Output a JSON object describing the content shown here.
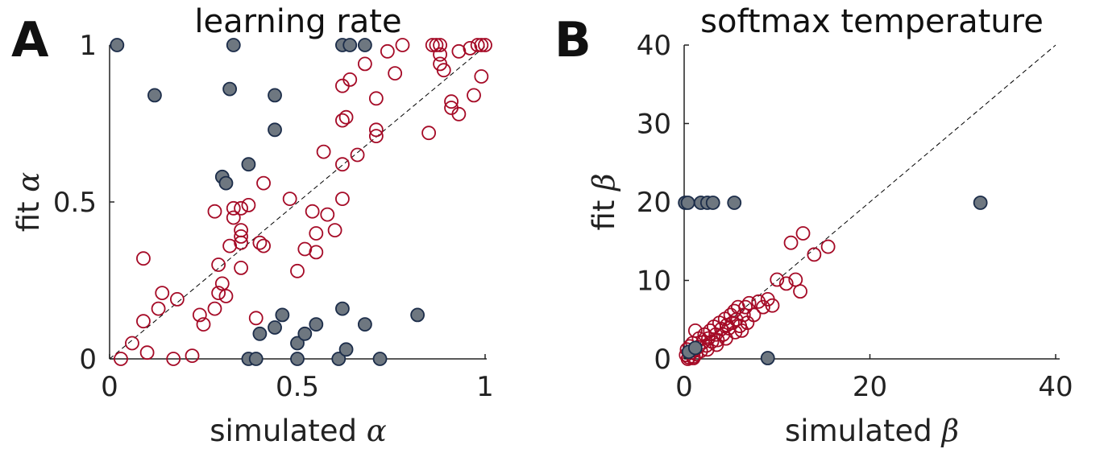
{
  "colors": {
    "fit_good": "#a50a26",
    "fit_bad_fill": "#6e7780",
    "fit_bad_edge": "#1c2d4a",
    "identity_line": "#000000",
    "axis": "#222222"
  },
  "chart_data": [
    {
      "panel": "A",
      "type": "scatter",
      "title": "learning rate",
      "xlabel": "simulated",
      "xlabel_symbol": "α",
      "ylabel": "fit",
      "ylabel_symbol": "α",
      "xlim": [
        0,
        1
      ],
      "ylim": [
        0,
        1
      ],
      "xticks": [
        0,
        0.5,
        1
      ],
      "yticks": [
        0,
        0.5,
        1
      ],
      "xtick_labels": [
        "0",
        "0.5",
        "1"
      ],
      "ytick_labels": [
        "0",
        "0.5",
        "1"
      ],
      "identity_line": true,
      "grid": false,
      "series": [
        {
          "style": "open-red",
          "points": [
            [
              0.03,
              0.0
            ],
            [
              0.06,
              0.05
            ],
            [
              0.1,
              0.02
            ],
            [
              0.09,
              0.32
            ],
            [
              0.09,
              0.12
            ],
            [
              0.13,
              0.16
            ],
            [
              0.14,
              0.21
            ],
            [
              0.17,
              0.0
            ],
            [
              0.18,
              0.19
            ],
            [
              0.22,
              0.01
            ],
            [
              0.24,
              0.14
            ],
            [
              0.25,
              0.11
            ],
            [
              0.28,
              0.16
            ],
            [
              0.29,
              0.21
            ],
            [
              0.29,
              0.3
            ],
            [
              0.3,
              0.24
            ],
            [
              0.31,
              0.2
            ],
            [
              0.32,
              0.36
            ],
            [
              0.28,
              0.47
            ],
            [
              0.33,
              0.45
            ],
            [
              0.33,
              0.48
            ],
            [
              0.35,
              0.48
            ],
            [
              0.35,
              0.41
            ],
            [
              0.35,
              0.37
            ],
            [
              0.35,
              0.39
            ],
            [
              0.35,
              0.29
            ],
            [
              0.37,
              0.49
            ],
            [
              0.39,
              0.13
            ],
            [
              0.4,
              0.37
            ],
            [
              0.41,
              0.36
            ],
            [
              0.41,
              0.56
            ],
            [
              0.48,
              0.51
            ],
            [
              0.5,
              0.28
            ],
            [
              0.52,
              0.35
            ],
            [
              0.54,
              0.47
            ],
            [
              0.55,
              0.34
            ],
            [
              0.55,
              0.4
            ],
            [
              0.57,
              0.66
            ],
            [
              0.58,
              0.46
            ],
            [
              0.6,
              0.41
            ],
            [
              0.62,
              0.51
            ],
            [
              0.62,
              0.62
            ],
            [
              0.62,
              0.76
            ],
            [
              0.63,
              0.77
            ],
            [
              0.62,
              0.87
            ],
            [
              0.64,
              0.89
            ],
            [
              0.66,
              0.65
            ],
            [
              0.68,
              0.94
            ],
            [
              0.71,
              0.71
            ],
            [
              0.71,
              0.73
            ],
            [
              0.71,
              0.83
            ],
            [
              0.74,
              0.98
            ],
            [
              0.76,
              0.91
            ],
            [
              0.78,
              1.0
            ],
            [
              0.85,
              0.72
            ],
            [
              0.86,
              1.0
            ],
            [
              0.87,
              1.0
            ],
            [
              0.88,
              1.0
            ],
            [
              0.88,
              0.97
            ],
            [
              0.88,
              0.94
            ],
            [
              0.89,
              0.92
            ],
            [
              0.91,
              0.82
            ],
            [
              0.91,
              0.8
            ],
            [
              0.93,
              0.78
            ],
            [
              0.93,
              0.98
            ],
            [
              0.96,
              0.99
            ],
            [
              0.97,
              0.84
            ],
            [
              0.98,
              1.0
            ],
            [
              0.99,
              1.0
            ],
            [
              1.0,
              1.0
            ],
            [
              0.99,
              0.9
            ]
          ]
        },
        {
          "style": "filled-gray",
          "points": [
            [
              0.02,
              1.0
            ],
            [
              0.12,
              0.84
            ],
            [
              0.32,
              0.86
            ],
            [
              0.33,
              1.0
            ],
            [
              0.3,
              0.58
            ],
            [
              0.31,
              0.56
            ],
            [
              0.37,
              0.62
            ],
            [
              0.44,
              0.84
            ],
            [
              0.44,
              0.73
            ],
            [
              0.37,
              0.0
            ],
            [
              0.39,
              0.0
            ],
            [
              0.4,
              0.08
            ],
            [
              0.44,
              0.1
            ],
            [
              0.46,
              0.14
            ],
            [
              0.5,
              0.0
            ],
            [
              0.5,
              0.05
            ],
            [
              0.52,
              0.08
            ],
            [
              0.55,
              0.11
            ],
            [
              0.61,
              0.0
            ],
            [
              0.62,
              0.16
            ],
            [
              0.63,
              0.03
            ],
            [
              0.68,
              0.11
            ],
            [
              0.72,
              0.0
            ],
            [
              0.82,
              0.14
            ],
            [
              0.62,
              1.0
            ],
            [
              0.64,
              1.0
            ],
            [
              0.68,
              1.0
            ]
          ]
        }
      ]
    },
    {
      "panel": "B",
      "type": "scatter",
      "title": "softmax temperature",
      "xlabel": "simulated",
      "xlabel_symbol": "β",
      "ylabel": "fit",
      "ylabel_symbol": "β",
      "xlim": [
        0,
        40
      ],
      "ylim": [
        0,
        40
      ],
      "xticks": [
        0,
        20,
        40
      ],
      "yticks": [
        0,
        10,
        20,
        30,
        40
      ],
      "xtick_labels": [
        "0",
        "20",
        "40"
      ],
      "ytick_labels": [
        "0",
        "10",
        "20",
        "30",
        "40"
      ],
      "identity_line": true,
      "grid": false,
      "series": [
        {
          "style": "open-red",
          "points": [
            [
              0.2,
              0.5
            ],
            [
              0.3,
              1.2
            ],
            [
              0.5,
              0.2
            ],
            [
              0.6,
              1.6
            ],
            [
              0.8,
              0.8
            ],
            [
              0.9,
              2.0
            ],
            [
              1.0,
              0.3
            ],
            [
              1.1,
              1.1
            ],
            [
              1.2,
              3.6
            ],
            [
              1.3,
              0.6
            ],
            [
              1.5,
              1.5
            ],
            [
              1.6,
              2.6
            ],
            [
              1.8,
              1.0
            ],
            [
              2.0,
              2.1
            ],
            [
              2.2,
              3.1
            ],
            [
              2.4,
              1.7
            ],
            [
              2.6,
              2.6
            ],
            [
              2.8,
              3.6
            ],
            [
              3.0,
              2.2
            ],
            [
              3.2,
              4.1
            ],
            [
              3.4,
              3.1
            ],
            [
              3.6,
              2.4
            ],
            [
              3.8,
              4.6
            ],
            [
              4.0,
              3.8
            ],
            [
              4.2,
              3.1
            ],
            [
              4.4,
              5.1
            ],
            [
              4.6,
              4.3
            ],
            [
              4.8,
              3.9
            ],
            [
              5.0,
              5.6
            ],
            [
              5.2,
              4.6
            ],
            [
              5.4,
              6.1
            ],
            [
              5.6,
              5.0
            ],
            [
              5.8,
              6.6
            ],
            [
              6.0,
              4.2
            ],
            [
              6.2,
              3.6
            ],
            [
              6.4,
              5.6
            ],
            [
              6.6,
              6.6
            ],
            [
              6.8,
              4.6
            ],
            [
              7.0,
              7.1
            ],
            [
              7.5,
              5.6
            ],
            [
              8.0,
              7.3
            ],
            [
              8.5,
              6.6
            ],
            [
              9.0,
              7.6
            ],
            [
              9.5,
              6.8
            ],
            [
              10.0,
              10.1
            ],
            [
              11.0,
              9.6
            ],
            [
              11.5,
              14.8
            ],
            [
              12.0,
              10.1
            ],
            [
              12.5,
              8.6
            ],
            [
              12.8,
              16.0
            ],
            [
              14.0,
              13.3
            ],
            [
              15.5,
              14.3
            ],
            [
              0.4,
              0.0
            ],
            [
              1.0,
              0.1
            ],
            [
              2.5,
              1.2
            ],
            [
              3.5,
              1.8
            ],
            [
              4.5,
              2.6
            ],
            [
              5.5,
              3.4
            ]
          ]
        },
        {
          "style": "filled-gray",
          "points": [
            [
              0.1,
              19.9
            ],
            [
              0.4,
              19.9
            ],
            [
              1.8,
              19.9
            ],
            [
              2.5,
              19.9
            ],
            [
              3.1,
              19.9
            ],
            [
              5.4,
              19.9
            ],
            [
              31.9,
              19.9
            ],
            [
              9.0,
              0.1
            ],
            [
              0.5,
              0.9
            ],
            [
              1.2,
              1.4
            ]
          ]
        }
      ]
    }
  ]
}
